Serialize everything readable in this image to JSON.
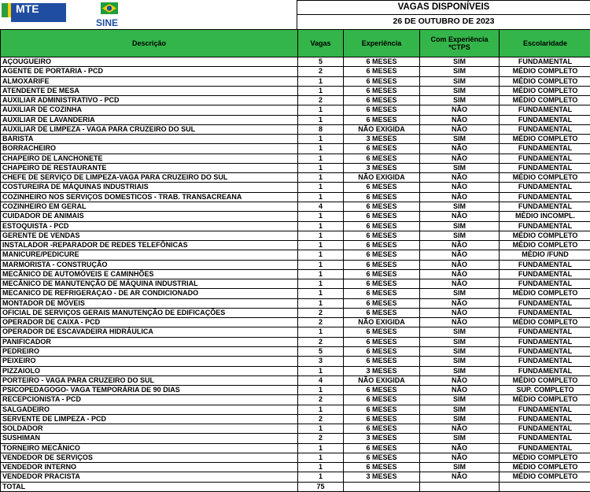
{
  "header": {
    "logos": [
      "MTE",
      "SINE"
    ],
    "title": "VAGAS DISPONÍVEIS",
    "date": "26 DE OUTUBRO DE 2023"
  },
  "table": {
    "columns": [
      "Descrição",
      "Vagas",
      "Experiência",
      "Com Experiência *CTPS",
      "Escolaridade"
    ],
    "rows": [
      [
        "AÇOUGUEIRO",
        5,
        "6 MESES",
        "SIM",
        "FUNDAMENTAL"
      ],
      [
        "AGENTE DE PORTARIA - PCD",
        2,
        "6 MESES",
        "SIM",
        "MÉDIO COMPLETO"
      ],
      [
        "ALMOXARIFE",
        1,
        "6 MESES",
        "SIM",
        "MÉDIO COMPLETO"
      ],
      [
        "ATENDENTE DE MESA",
        1,
        "6 MESES",
        "SIM",
        "MÉDIO COMPLETO"
      ],
      [
        "AUXILIAR ADMINISTRATIVO -  PCD",
        2,
        "6 MESES",
        "SIM",
        "MÉDIO COMPLETO"
      ],
      [
        "AUXILIAR DE COZINHA",
        1,
        "6 MESES",
        "NÃO",
        "FUNDAMENTAL"
      ],
      [
        "AUXILIAR DE LAVANDERIA",
        1,
        "6 MESES",
        "NÃO",
        "FUNDAMENTAL"
      ],
      [
        "AUXILIAR DE LIMPEZA - VAGA PARA CRUZEIRO DO SUL",
        8,
        "NÃO EXIGIDA",
        "NÃO",
        "FUNDAMENTAL"
      ],
      [
        "BARISTA",
        1,
        "3 MESES",
        "SIM",
        "MÉDIO COMPLETO"
      ],
      [
        "BORRACHEIRO",
        1,
        "6 MESES",
        "NÃO",
        "FUNDAMENTAL"
      ],
      [
        "CHAPEIRO DE LANCHONETE",
        1,
        "6 MESES",
        "NÃO",
        "FUNDAMENTAL"
      ],
      [
        "CHAPEIRO DE RESTAURANTE",
        1,
        "3 MESES",
        "SIM",
        "FUNDAMENTAL"
      ],
      [
        "CHEFE DE SERVIÇO DE LIMPEZA-VAGA PARA CRUZEIRO DO SUL",
        1,
        "NÃO EXIGIDA",
        "NÃO",
        "MÉDIO COMPLETO"
      ],
      [
        "COSTUREIRA DE MÁQUINAS  INDUSTRIAIS",
        1,
        "6 MESES",
        "NÃO",
        "FUNDAMENTAL"
      ],
      [
        "COZINHEIRO NOS SERVIÇOS DOMESTICOS - TRAB. TRANSACREANA",
        1,
        "6 MESES",
        "NÃO",
        "FUNDAMENTAL"
      ],
      [
        "COZINHEIRO EM GERAL",
        4,
        "6 MESES",
        "SIM",
        "FUNDAMENTAL"
      ],
      [
        "CUIDADOR DE ANIMAIS",
        1,
        "6 MESES",
        "NÃO",
        "MÉDIO INCOMPL."
      ],
      [
        "ESTOQUISTA - PCD",
        1,
        "6 MESES",
        "SIM",
        "FUNDAMENTAL"
      ],
      [
        "GERENTE DE VENDAS",
        1,
        "6 MESES",
        "SIM",
        "MÉDIO COMPLETO"
      ],
      [
        "INSTALADOR -REPARADOR DE REDES TELEFÔNICAS",
        1,
        "6 MESES",
        "NÃO",
        "MÉDIO COMPLETO"
      ],
      [
        "MANICURE/PEDICURE",
        1,
        "6 MESES",
        "NÃO",
        "MÉDIO /FUND"
      ],
      [
        "MARMORISTA - CONSTRUÇÃO",
        1,
        "6 MESES",
        "NÃO",
        "FUNDAMENTAL"
      ],
      [
        "MECÂNICO DE AUTOMÓVEIS E CAMINHÕES",
        1,
        "6 MESES",
        "NÃO",
        "FUNDAMENTAL"
      ],
      [
        "MECÂNICO DE MANUTENÇÃO DE MÁQUINA INDUSTRIAL",
        1,
        "6 MESES",
        "NÃO",
        "FUNDAMENTAL"
      ],
      [
        "MECANICO DE REFRIGERAÇAO - DE AR CONDICIONADO",
        1,
        "6 MESES",
        "SIM",
        "MÉDIO COMPLETO"
      ],
      [
        "MONTADOR DE MÓVEIS",
        1,
        "6 MESES",
        "NÃO",
        "FUNDAMENTAL"
      ],
      [
        "OFICIAL DE SERVIÇOS GERAIS MANUTENÇÃO DE EDIFICAÇÕES",
        2,
        "6 MESES",
        "NÃO",
        "FUNDAMENTAL"
      ],
      [
        "OPERADOR DE CAIXA - PCD",
        2,
        "NÃO EXIGIDA",
        "NÃO",
        "MÉDIO COMPLETO"
      ],
      [
        "OPERADOR DE ESCAVADEIRA HIDRÁULICA",
        1,
        "6 MESES",
        "SIM",
        "FUNDAMENTAL"
      ],
      [
        "PANIFICADOR",
        2,
        "6 MESES",
        "SIM",
        "FUNDAMENTAL"
      ],
      [
        "PEDREIRO",
        5,
        "6 MESES",
        "SIM",
        "FUNDAMENTAL"
      ],
      [
        "PEIXEIRO",
        3,
        "6 MESES",
        "SIM",
        "FUNDAMENTAL"
      ],
      [
        "PIZZAIOLO",
        1,
        "3 MESES",
        "SIM",
        "FUNDAMENTAL"
      ],
      [
        "PORTEIRO - VAGA PARA CRUZEIRO DO SUL",
        4,
        "NÃO EXIGIDA",
        "NÃO",
        "MÉDIO COMPLETO"
      ],
      [
        "PSICOPEDAGOGO- VAGA TEMPORÁRIA DE 90 DIAS",
        1,
        "6 MESES",
        "NÃO",
        "SUP. COMPLETO"
      ],
      [
        "RECEPCIONISTA - PCD",
        2,
        "6 MESES",
        "SIM",
        "MÉDIO COMPLETO"
      ],
      [
        "SALGADEIRO",
        1,
        "6 MESES",
        "SIM",
        "FUNDAMENTAL"
      ],
      [
        "SERVENTE DE LIMPEZA - PCD",
        2,
        "6 MESES",
        "SIM",
        "FUNDAMENTAL"
      ],
      [
        "SOLDADOR",
        1,
        "6 MESES",
        "NÃO",
        "FUNDAMENTAL"
      ],
      [
        "SUSHIMAN",
        2,
        "3 MESES",
        "SIM",
        "FUNDAMENTAL"
      ],
      [
        "TORNEIRO MECÂNICO",
        1,
        "6 MESES",
        "NÃO",
        "FUNDAMENTAL"
      ],
      [
        "VENDEDOR DE SERVIÇOS",
        1,
        "6 MESES",
        "NÃO",
        "MÉDIO COMPLETO"
      ],
      [
        "VENDEDOR INTERNO",
        1,
        "6 MESES",
        "SIM",
        "MÉDIO COMPLETO"
      ],
      [
        "VENDEDOR PRACISTA",
        1,
        "3 MESES",
        "NÃO",
        "MÉDIO COMPLETO"
      ]
    ],
    "total": {
      "label": "TOTAL",
      "value": 75
    }
  }
}
